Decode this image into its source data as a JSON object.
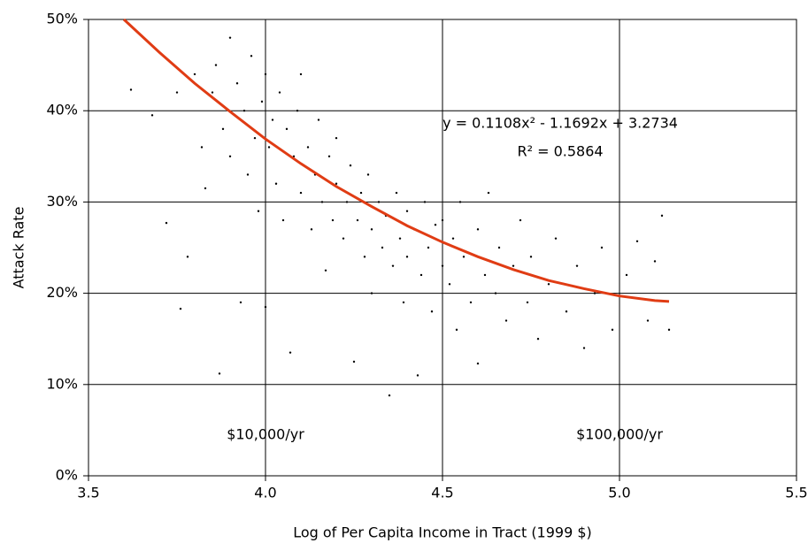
{
  "chart_data": {
    "type": "scatter",
    "x_label": "Log of Per Capita Income in Tract (1999 $)",
    "y_label": "Attack Rate",
    "annotations": [
      "y = 0.1108x² - 1.1692x + 3.2734",
      "R² = 0.5864",
      "$10,000/yr",
      "$100,000/yr"
    ],
    "xlim": [
      3.5,
      5.5
    ],
    "xticks": [
      3.5,
      {
        "value": 4,
        "label": "4.0"
      },
      4.5,
      {
        "value": 5,
        "label": "5.0"
      },
      5.5
    ],
    "ylim": [
      0,
      50
    ],
    "yticks": [
      {
        "value": 0,
        "label": "0%"
      },
      {
        "value": 10,
        "label": "10%"
      },
      {
        "value": 20,
        "label": "20%"
      },
      {
        "value": 30,
        "label": "30%"
      },
      {
        "value": 40,
        "label": "40%"
      },
      {
        "value": 50,
        "label": "50%"
      }
    ],
    "grid": true,
    "points": {
      "color": "#000000",
      "x": [
        3.62,
        3.68,
        3.72,
        3.75,
        3.76,
        3.78,
        3.8,
        3.82,
        3.83,
        3.85,
        3.86,
        3.87,
        3.88,
        3.9,
        3.9,
        3.92,
        3.93,
        3.94,
        3.95,
        3.96,
        3.97,
        3.98,
        3.99,
        4.0,
        4.0,
        4.01,
        4.02,
        4.03,
        4.04,
        4.05,
        4.06,
        4.07,
        4.08,
        4.09,
        4.1,
        4.1,
        4.12,
        4.13,
        4.14,
        4.15,
        4.16,
        4.17,
        4.18,
        4.19,
        4.2,
        4.2,
        4.22,
        4.23,
        4.24,
        4.25,
        4.26,
        4.27,
        4.28,
        4.29,
        4.3,
        4.3,
        4.32,
        4.33,
        4.34,
        4.35,
        4.36,
        4.37,
        4.38,
        4.39,
        4.4,
        4.4,
        4.42,
        4.43,
        4.44,
        4.45,
        4.46,
        4.47,
        4.48,
        4.5,
        4.5,
        4.52,
        4.53,
        4.54,
        4.55,
        4.56,
        4.58,
        4.6,
        4.6,
        4.62,
        4.63,
        4.65,
        4.66,
        4.68,
        4.7,
        4.72,
        4.74,
        4.75,
        4.77,
        4.8,
        4.82,
        4.85,
        4.88,
        4.9,
        4.93,
        4.95,
        4.98,
        5.02,
        5.05,
        5.08,
        5.1,
        5.12,
        5.14
      ],
      "values": [
        42.3,
        39.5,
        27.7,
        42,
        18.3,
        24,
        44,
        36,
        31.5,
        42,
        45,
        11.2,
        38,
        48,
        35,
        43,
        19,
        40,
        33,
        46,
        37,
        29,
        41,
        44,
        18.5,
        36,
        39,
        32,
        42,
        28,
        38,
        13.5,
        35,
        40,
        31,
        44,
        36,
        27,
        33,
        39,
        30,
        22.5,
        35,
        28,
        32,
        37,
        26,
        30,
        34,
        12.5,
        28,
        31,
        24,
        33,
        27,
        20,
        30,
        25,
        28.5,
        8.8,
        23,
        31,
        26,
        19,
        29,
        24,
        27,
        11,
        22,
        30,
        25,
        18,
        27.5,
        23,
        28,
        21,
        26,
        16,
        30,
        24,
        19,
        27,
        12.3,
        22,
        31,
        20,
        25,
        17,
        23,
        28,
        19,
        24,
        15,
        21,
        26,
        18,
        23,
        14,
        20,
        25,
        16,
        22,
        25.7,
        17,
        23.5,
        28.5,
        16
      ]
    },
    "trendline": {
      "color": "#e03c14",
      "x": [
        3.6,
        3.7,
        3.8,
        3.9,
        4.0,
        4.1,
        4.2,
        4.3,
        4.4,
        4.5,
        4.6,
        4.7,
        4.8,
        4.9,
        5.0,
        5.1,
        5.14
      ],
      "values": [
        50.0,
        46.4,
        43.0,
        39.9,
        36.9,
        34.2,
        31.7,
        29.5,
        27.4,
        25.6,
        24.0,
        22.6,
        21.4,
        20.5,
        19.7,
        19.2,
        19.1
      ]
    }
  }
}
